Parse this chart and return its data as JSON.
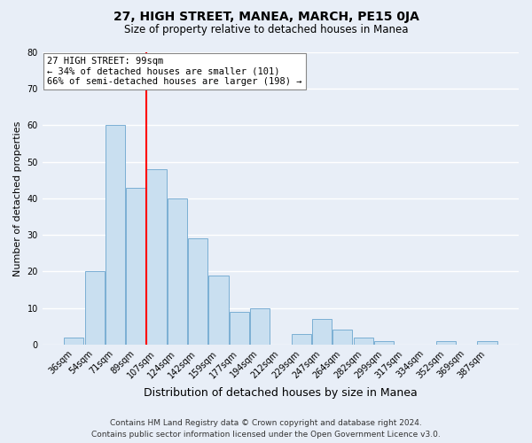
{
  "title": "27, HIGH STREET, MANEA, MARCH, PE15 0JA",
  "subtitle": "Size of property relative to detached houses in Manea",
  "xlabel": "Distribution of detached houses by size in Manea",
  "ylabel": "Number of detached properties",
  "footer_line1": "Contains HM Land Registry data © Crown copyright and database right 2024.",
  "footer_line2": "Contains public sector information licensed under the Open Government Licence v3.0.",
  "bin_labels": [
    "36sqm",
    "54sqm",
    "71sqm",
    "89sqm",
    "107sqm",
    "124sqm",
    "142sqm",
    "159sqm",
    "177sqm",
    "194sqm",
    "212sqm",
    "229sqm",
    "247sqm",
    "264sqm",
    "282sqm",
    "299sqm",
    "317sqm",
    "334sqm",
    "352sqm",
    "369sqm",
    "387sqm"
  ],
  "bar_values": [
    2,
    20,
    60,
    43,
    48,
    40,
    29,
    19,
    9,
    10,
    0,
    3,
    7,
    4,
    2,
    1,
    0,
    0,
    1,
    0,
    1
  ],
  "bar_color": "#c9dff0",
  "bar_edge_color": "#7bafd4",
  "vline_x_index": 3.5,
  "vline_color": "red",
  "ylim": [
    0,
    80
  ],
  "yticks": [
    0,
    10,
    20,
    30,
    40,
    50,
    60,
    70,
    80
  ],
  "annotation_text": "27 HIGH STREET: 99sqm\n← 34% of detached houses are smaller (101)\n66% of semi-detached houses are larger (198) →",
  "annotation_box_color": "white",
  "annotation_box_edge": "#888888",
  "background_color": "#e8eef7",
  "grid_color": "#ffffff",
  "title_fontsize": 10,
  "subtitle_fontsize": 8.5,
  "ylabel_fontsize": 8,
  "xlabel_fontsize": 9,
  "tick_fontsize": 7,
  "annot_fontsize": 7.5,
  "footer_fontsize": 6.5
}
